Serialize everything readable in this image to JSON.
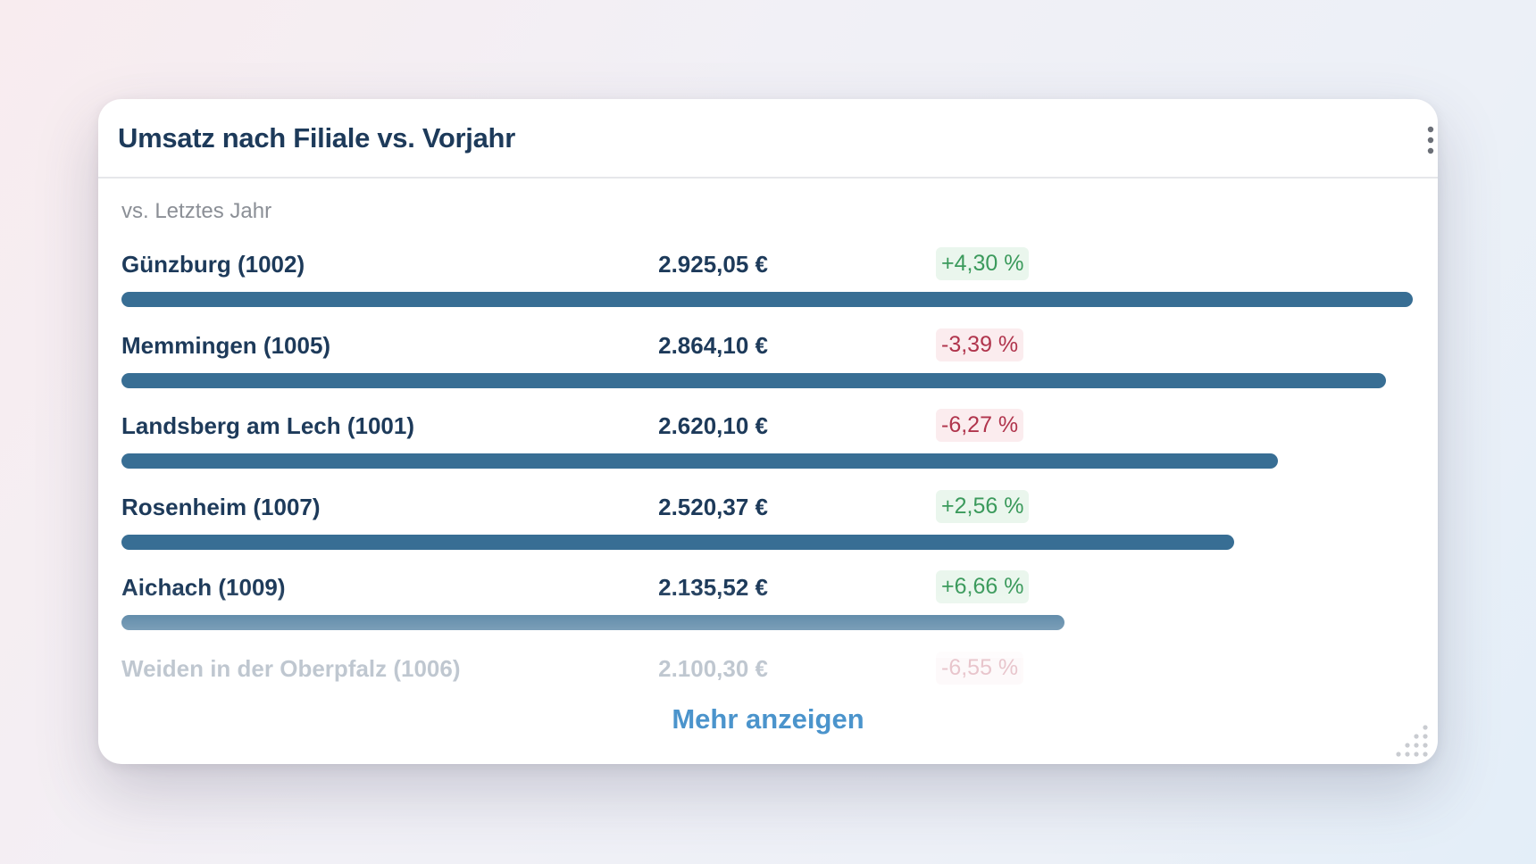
{
  "widget": {
    "title": "Umsatz nach Filiale vs. Vorjahr",
    "subtitle": "vs. Letztes Jahr",
    "more_label": "Mehr anzeigen",
    "icons": {
      "menu": "vertical-dots-icon",
      "move": "move-arrows-icon",
      "resize": "resize-handle-icon"
    }
  },
  "colors": {
    "bar": "#386e94",
    "positive_text": "#3b9a5c",
    "negative_text": "#b0344c",
    "title": "#1d3a5a",
    "link": "#4b94cc"
  },
  "chart_data": {
    "type": "bar",
    "orientation": "horizontal",
    "title": "Umsatz nach Filiale vs. Vorjahr",
    "subtitle": "vs. Letztes Jahr",
    "categories": [
      "Günzburg (1002)",
      "Memmingen (1005)",
      "Landsberg am Lech (1001)",
      "Rosenheim (1007)",
      "Aichach (1009)",
      "Weiden in der Oberpfalz (1006)"
    ],
    "values": [
      2925.05,
      2864.1,
      2620.1,
      2520.37,
      2135.52,
      2100.3
    ],
    "value_labels": [
      "2.925,05 €",
      "2.864,10 €",
      "2.620,10 €",
      "2.520,37 €",
      "2.135,52 €",
      "2.100,30 €"
    ],
    "change_labels": [
      "+4,30 %",
      "-3,39 %",
      "-6,27 %",
      "+2,56 %",
      "+6,66 %",
      "-6,55 %"
    ],
    "change_values": [
      4.3,
      -3.39,
      -6.27,
      2.56,
      6.66,
      -6.55
    ],
    "xlim": [
      0,
      2925.05
    ],
    "unit": "€"
  }
}
